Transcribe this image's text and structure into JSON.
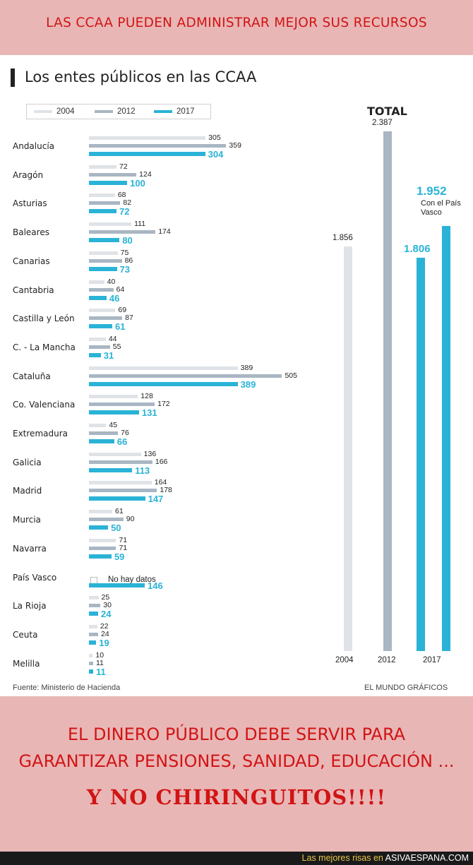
{
  "top_banner": {
    "text": "LAS CCAA PUEDEN ADMINISTRAR MEJOR SUS RECURSOS"
  },
  "bottom_banner": {
    "line1": "EL DINERO PÚBLICO DEBE SERVIR PARA",
    "line2": "GARANTIZAR PENSIONES, SANIDAD, EDUCACIÓN ...",
    "line3": "Y NO CHIRINGUITOS!!!!"
  },
  "footer": {
    "text": "Las mejores risas en",
    "brand": "ASIVAESPANA.COM"
  },
  "colors": {
    "s2004": "#dfe3e7",
    "s2012": "#a9b6c3",
    "s2017": "#2ab3d6",
    "banner": "#e9b6b6",
    "banner_text": "#d11414"
  },
  "chart_data": [
    {
      "type": "bar",
      "orientation": "horizontal",
      "title": "Los entes públicos en las CCAA",
      "legend": [
        "2004",
        "2012",
        "2017"
      ],
      "legend_position": "top-left",
      "categories": [
        "Andalucía",
        "Aragón",
        "Asturias",
        "Baleares",
        "Canarias",
        "Cantabria",
        "Castilla y León",
        "C. - La Mancha",
        "Cataluña",
        "Co. Valenciana",
        "Extremadura",
        "Galicia",
        "Madrid",
        "Murcia",
        "Navarra",
        "País Vasco",
        "La Rioja",
        "Ceuta",
        "Melilla"
      ],
      "series": [
        {
          "name": "2004",
          "values": [
            305,
            72,
            68,
            111,
            75,
            40,
            69,
            44,
            389,
            128,
            45,
            136,
            164,
            61,
            71,
            null,
            25,
            22,
            10
          ]
        },
        {
          "name": "2012",
          "values": [
            359,
            124,
            82,
            174,
            86,
            64,
            87,
            55,
            505,
            172,
            76,
            166,
            178,
            90,
            71,
            null,
            30,
            24,
            11
          ]
        },
        {
          "name": "2017",
          "values": [
            304,
            100,
            72,
            80,
            73,
            46,
            61,
            31,
            389,
            131,
            66,
            113,
            147,
            50,
            59,
            146,
            24,
            19,
            11
          ]
        }
      ],
      "no_data_label": "No hay datos",
      "source": "Fuente: Ministerio de Hacienda",
      "credit": "EL MUNDO GRÁFICOS"
    },
    {
      "type": "bar",
      "orientation": "vertical",
      "title": "TOTAL",
      "categories": [
        "2004",
        "2012",
        "2017"
      ],
      "bars": [
        {
          "year": "2004",
          "label": "1.856",
          "value": 1856
        },
        {
          "year": "2012",
          "label": "2.387",
          "value": 2387
        },
        {
          "year": "2017",
          "label": "1.806",
          "value": 1806
        },
        {
          "year": "2017",
          "label": "1.952",
          "value": 1952,
          "note": "Con el País Vasco"
        }
      ]
    }
  ]
}
